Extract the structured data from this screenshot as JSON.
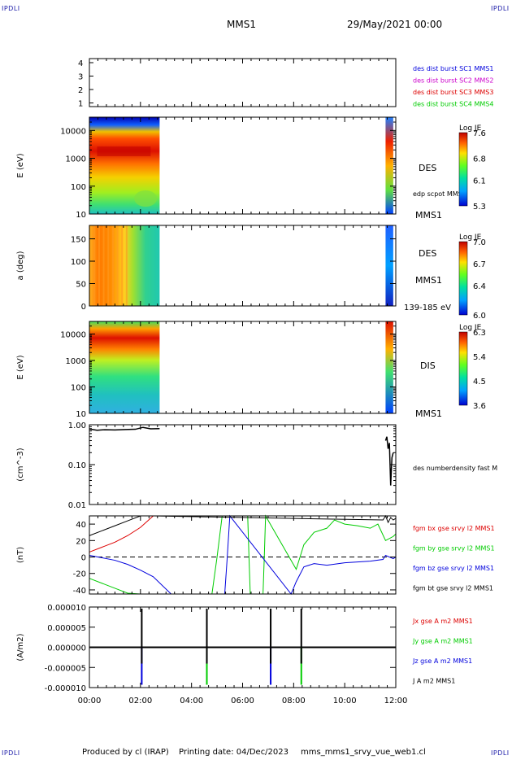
{
  "corner_label": "IPDLI",
  "header": {
    "spacecraft": "MMS1",
    "date": "29/May/2021 00:00"
  },
  "footer": {
    "producer": "Produced by cl (IRAP)",
    "printing": "Printing date: 04/Dec/2023",
    "filename": "mms_mms1_srvy_vue_web1.cl"
  },
  "colors": {
    "black": "#000000",
    "red": "#dd0000",
    "green": "#00cc00",
    "blue": "#0000dd",
    "magenta": "#cc00cc",
    "corner": "#1a1aa8"
  },
  "chart_data": [
    {
      "type": "table",
      "id": "burst",
      "ylabels": [
        "4",
        "3",
        "2",
        "1"
      ],
      "legend": [
        {
          "name": "des dist burst SC1 MMS1",
          "color": "#0000dd"
        },
        {
          "name": "des dist burst SC2 MMS2",
          "color": "#cc00cc"
        },
        {
          "name": "des dist burst SC3 MMS3",
          "color": "#dd0000"
        },
        {
          "name": "des dist burst SC4 MMS4",
          "color": "#00cc00"
        }
      ]
    },
    {
      "type": "heatmap",
      "id": "des-energy",
      "ylabel": "E (eV)",
      "yscale": "log",
      "ylim": [
        10,
        30000
      ],
      "yticks": [
        "10000",
        "1000",
        "100",
        "10"
      ],
      "data_intervals_hours": [
        [
          0.0,
          2.75
        ],
        [
          11.6,
          11.9
        ]
      ],
      "right_labels": [
        "DES",
        "edp scpot MMS1",
        "MMS1"
      ],
      "colorbar": {
        "title": "Log JE",
        "ticks": [
          "7.6",
          "6.8",
          "6.1",
          "5.3"
        ],
        "range": [
          5.3,
          7.6
        ]
      }
    },
    {
      "type": "heatmap",
      "id": "des-pitch",
      "ylabel": "a (deg)",
      "ylim": [
        0,
        180
      ],
      "yticks": [
        "150",
        "100",
        "50",
        "0"
      ],
      "data_intervals_hours": [
        [
          0.0,
          2.75
        ],
        [
          11.6,
          11.9
        ]
      ],
      "right_labels": [
        "DES",
        "MMS1",
        "139-185 eV"
      ],
      "colorbar": {
        "title": "Log JE",
        "ticks": [
          "7.0",
          "6.7",
          "6.4",
          "6.0"
        ],
        "range": [
          6.0,
          7.0
        ]
      }
    },
    {
      "type": "heatmap",
      "id": "dis-energy",
      "ylabel": "E (eV)",
      "yscale": "log",
      "ylim": [
        10,
        30000
      ],
      "yticks": [
        "10000",
        "1000",
        "100",
        "10"
      ],
      "data_intervals_hours": [
        [
          0.0,
          2.75
        ],
        [
          11.6,
          11.9
        ]
      ],
      "right_labels": [
        "DIS",
        "MMS1"
      ],
      "colorbar": {
        "title": "Log JE",
        "ticks": [
          "6.3",
          "5.4",
          "4.5",
          "3.6"
        ],
        "range": [
          3.6,
          6.3
        ]
      }
    },
    {
      "type": "line",
      "id": "density",
      "ylabel": "(cm^-3)",
      "yscale": "log",
      "ylim": [
        0.01,
        1.0
      ],
      "yticks": [
        "1.00",
        "0.10",
        "0.01"
      ],
      "series": [
        {
          "name": "des numberdensity fast M",
          "color": "#000000",
          "x": [
            0.0,
            0.3,
            0.6,
            1.0,
            1.4,
            1.8,
            2.1,
            2.4,
            2.75
          ],
          "y": [
            0.78,
            0.73,
            0.75,
            0.74,
            0.76,
            0.77,
            0.86,
            0.79,
            0.8
          ]
        },
        {
          "name": "",
          "color": "#000000",
          "x": [
            11.6,
            11.65,
            11.7,
            11.75,
            11.8,
            11.85,
            11.9
          ],
          "y": [
            0.4,
            0.5,
            0.25,
            0.35,
            0.03,
            0.15,
            0.2
          ]
        }
      ]
    },
    {
      "type": "line",
      "id": "magnetic-field",
      "ylabel": "(nT)",
      "ylim": [
        -45,
        50
      ],
      "yticks": [
        "40",
        "20",
        "0",
        "-20",
        "-40"
      ],
      "zero_line": true,
      "series": [
        {
          "name": "fgm bx gse srvy l2 MMS1",
          "color": "#dd0000",
          "x": [
            0.0,
            0.5,
            1.0,
            1.5,
            2.0,
            2.5
          ],
          "y": [
            6,
            12,
            18,
            26,
            36,
            50
          ]
        },
        {
          "name": "fgm by gse srvy l2 MMS1",
          "color": "#00cc00",
          "x": [
            0.0,
            0.5,
            1.0,
            1.5,
            2.0,
            2.5,
            4.8,
            5.0,
            5.2,
            5.3,
            6.2,
            6.25,
            6.3,
            6.8,
            6.85,
            6.9,
            8.1,
            8.4,
            8.8,
            9.3,
            9.6,
            10.0,
            10.5,
            11.0,
            11.3,
            11.6,
            11.9,
            12.0
          ],
          "y": [
            -26,
            -32,
            -38,
            -44,
            -48,
            -50,
            -50,
            0,
            50,
            50,
            50,
            0,
            -50,
            -50,
            0,
            50,
            -15,
            15,
            30,
            35,
            45,
            40,
            38,
            35,
            40,
            20,
            25,
            28
          ]
        },
        {
          "name": "fgm bz gse srvy l2 MMS1",
          "color": "#0000dd",
          "x": [
            0.0,
            0.5,
            1.0,
            1.5,
            2.0,
            2.5,
            3.2,
            3.5,
            5.3,
            5.4,
            5.5,
            7.9,
            8.1,
            8.4,
            8.8,
            9.3,
            10.0,
            11.0,
            11.5,
            11.6,
            11.9,
            12.0
          ],
          "y": [
            2,
            -1,
            -4,
            -9,
            -16,
            -24,
            -45,
            -50,
            -50,
            0,
            50,
            -50,
            -30,
            -12,
            -8,
            -10,
            -7,
            -5,
            -3,
            2,
            -2,
            0
          ]
        },
        {
          "name": "fgm bt gse srvy l2 MMS1",
          "color": "#000000",
          "x": [
            0.0,
            0.5,
            1.0,
            1.5,
            2.0,
            2.5,
            11.5,
            11.6,
            11.7,
            11.8,
            11.9,
            12.0
          ],
          "y": [
            26,
            32,
            38,
            44,
            50,
            56,
            45,
            50,
            42,
            48,
            45,
            47
          ]
        }
      ]
    },
    {
      "type": "line",
      "id": "current-density",
      "ylabel": "(A/m2)",
      "ylim": [
        -1e-05,
        1e-05
      ],
      "yticks": [
        "0.000010",
        "0.000005",
        "0.000000",
        "-0.000005",
        "-0.000010"
      ],
      "xticks": [
        "00:00",
        "02:00",
        "04:00",
        "06:00",
        "08:00",
        "10:00",
        "12:00"
      ],
      "spike_times_hours": [
        2.05,
        4.6,
        7.1,
        8.3
      ],
      "series": [
        {
          "name": "Jx gse A m2 MMS1",
          "color": "#dd0000"
        },
        {
          "name": "Jy gse A m2 MMS1",
          "color": "#00cc00"
        },
        {
          "name": "Jz gse A m2 MMS1",
          "color": "#0000dd"
        },
        {
          "name": "J A m2 MMS1",
          "color": "#000000"
        }
      ]
    }
  ]
}
